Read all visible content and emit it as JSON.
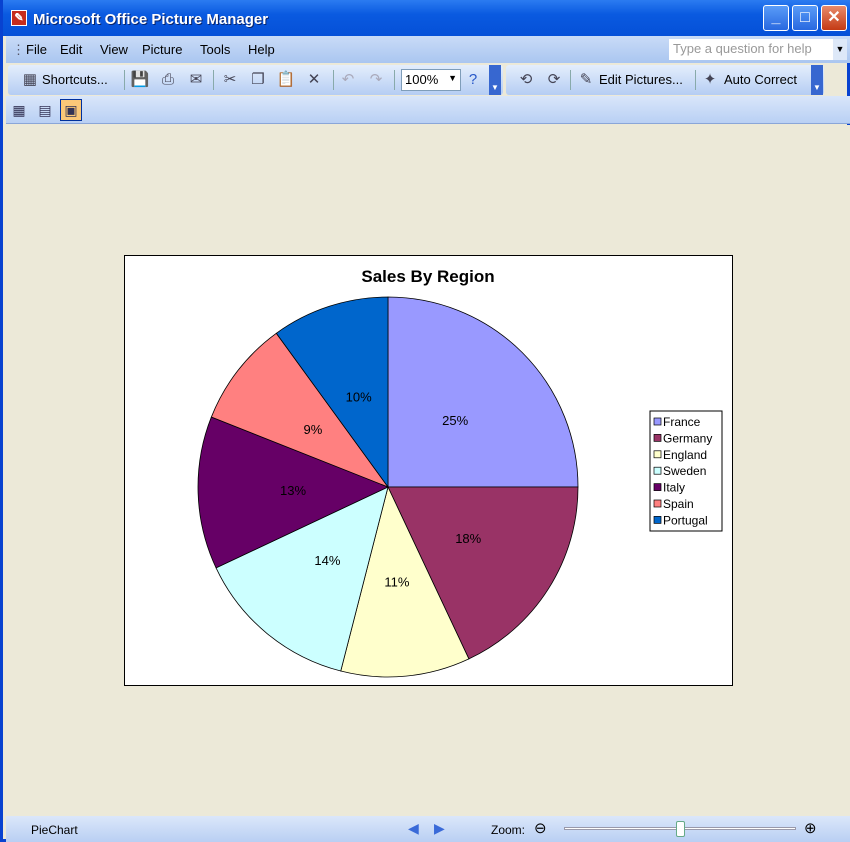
{
  "window": {
    "title": "Microsoft Office Picture Manager"
  },
  "menu": {
    "items": [
      "File",
      "Edit",
      "View",
      "Picture",
      "Tools",
      "Help"
    ],
    "help_placeholder": "Type a question for help"
  },
  "toolbar": {
    "shortcuts": "Shortcuts...",
    "zoom": "100%",
    "edit_pictures": "Edit Pictures...",
    "auto_correct": "Auto Correct"
  },
  "status": {
    "filename": "PieChart",
    "zoom_label": "Zoom:",
    "zoom_level": 0.5
  },
  "chart_data": {
    "type": "pie",
    "title": "Sales By Region",
    "categories": [
      "France",
      "Germany",
      "England",
      "Sweden",
      "Italy",
      "Spain",
      "Portugal"
    ],
    "values": [
      25,
      18,
      11,
      14,
      13,
      9,
      10
    ],
    "labels": [
      "25%",
      "18%",
      "11%",
      "14%",
      "13%",
      "9%",
      "10%"
    ],
    "colors": [
      "#9999ff",
      "#993366",
      "#ffffcc",
      "#ccffff",
      "#660066",
      "#ff8080",
      "#0066cc"
    ],
    "legend": "right"
  }
}
